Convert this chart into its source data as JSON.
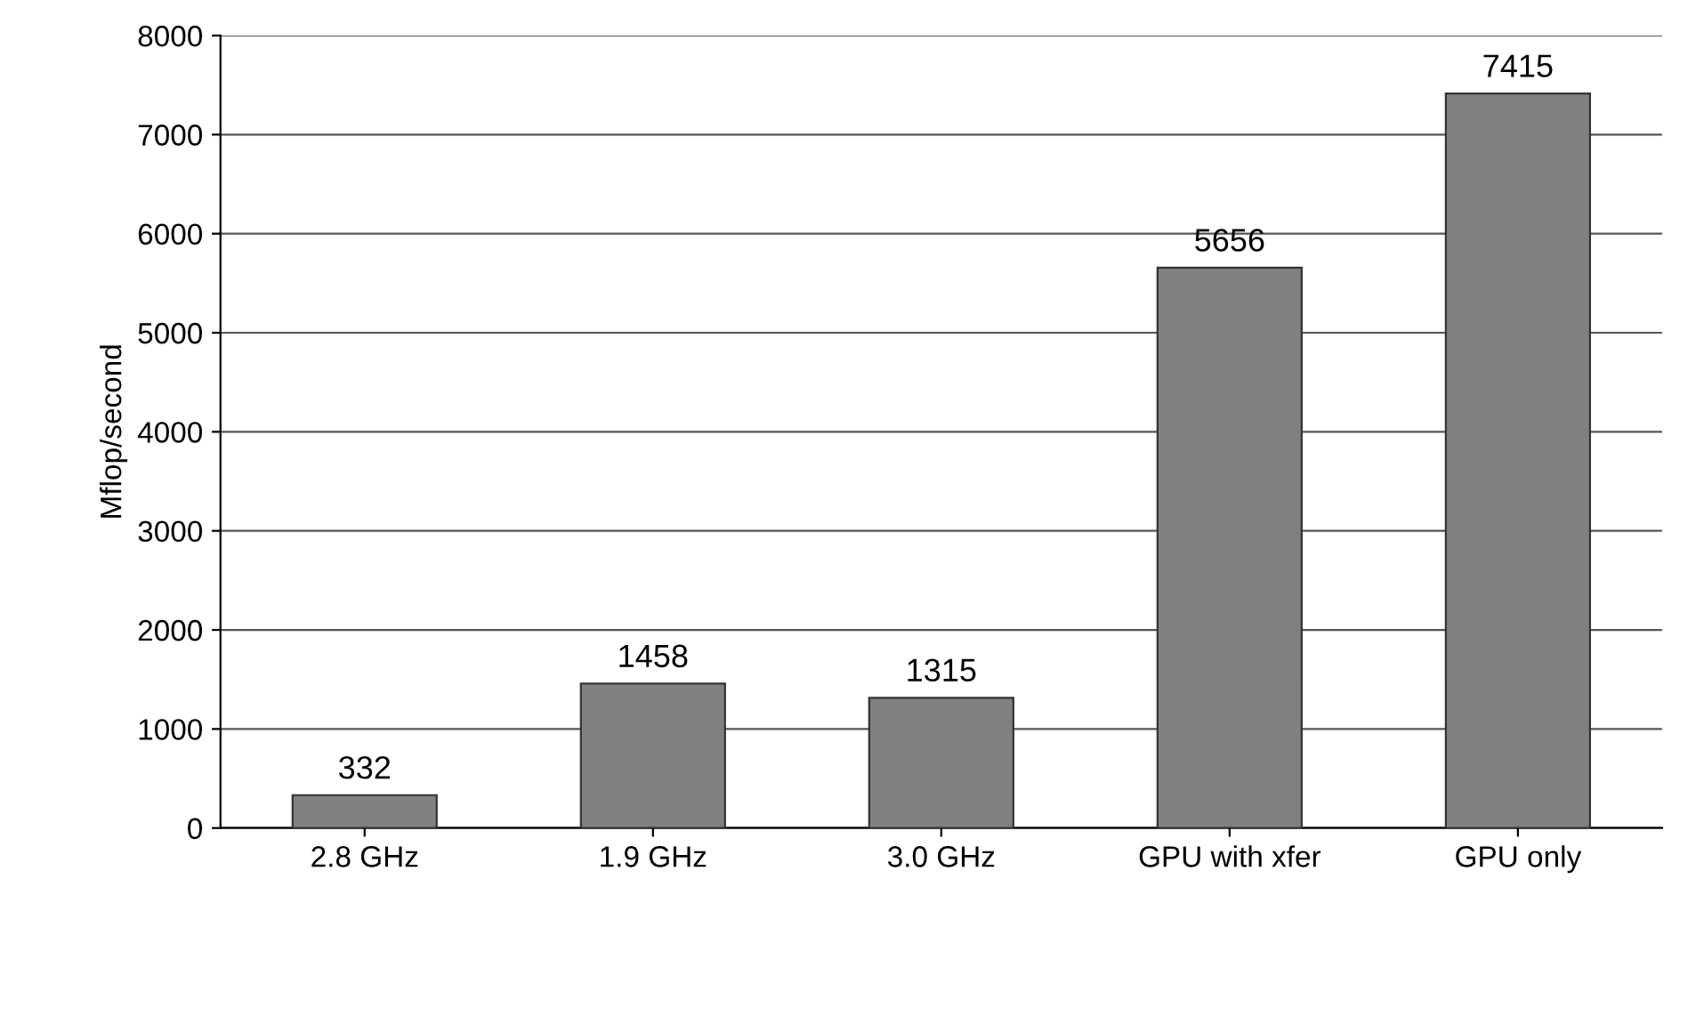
{
  "chart_data": {
    "type": "bar",
    "ylabel": "Mflop/second",
    "categories": [
      "2.8 GHz",
      "1.9 GHz",
      "3.0 GHz",
      "GPU with xfer",
      "GPU only"
    ],
    "values": [
      332,
      1458,
      1315,
      5656,
      7415
    ],
    "color": "#808080",
    "ylim": [
      0,
      8000
    ],
    "yticks": [
      0,
      1000,
      2000,
      3000,
      4000,
      5000,
      6000,
      7000,
      8000
    ],
    "grid": "y",
    "data_labels": true
  }
}
